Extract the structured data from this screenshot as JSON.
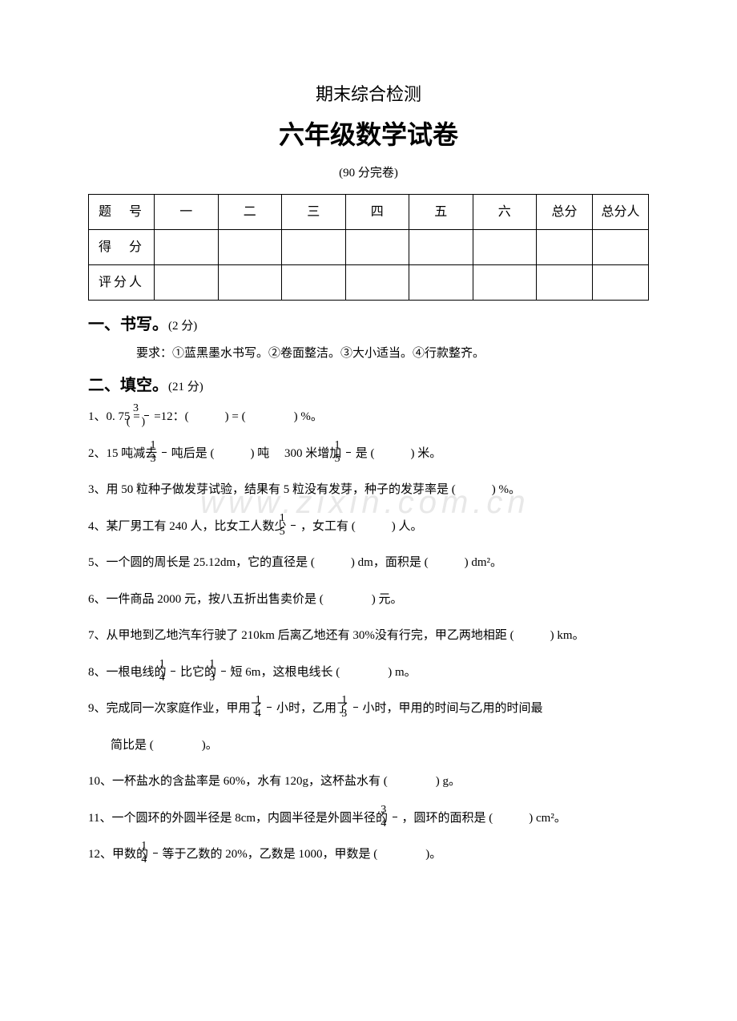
{
  "watermark": "www.zixin.com.cn",
  "header": {
    "subtitle": "期末综合检测",
    "title": "六年级数学试卷",
    "time": "(90 分完卷)"
  },
  "score_table": {
    "rows": [
      [
        "题　号",
        "一",
        "二",
        "三",
        "四",
        "五",
        "六",
        "总分",
        "总分人"
      ],
      [
        "得　分",
        "",
        "",
        "",
        "",
        "",
        "",
        "",
        ""
      ],
      [
        "评分人",
        "",
        "",
        "",
        "",
        "",
        "",
        "",
        ""
      ]
    ]
  },
  "sections": {
    "s1": {
      "title": "一、书写。",
      "points": "(2 分)",
      "requirement": "要求：①蓝黑墨水书写。②卷面整洁。③大小适当。④行款整齐。"
    },
    "s2": {
      "title": "二、填空。",
      "points": "(21 分)"
    }
  },
  "questions": {
    "q1_prefix": "1、0. 75 =",
    "q1_f1_num": "3",
    "q1_f1_den": "(　)",
    "q1_mid": " =12：(　　　) = (　　　　) %。",
    "q2_prefix": "2、15 吨减去",
    "q2_f1_num": "1",
    "q2_f1_den": "3",
    "q2_mid1": "吨后是 (　　　) 吨　 300 米增加",
    "q2_f2_num": "1",
    "q2_f2_den": "5",
    "q2_end": "是 (　　　) 米。",
    "q3": "3、用 50 粒种子做发芽试验，结果有 5 粒没有发芽，种子的发芽率是 (　　　) %。",
    "q4_prefix": "4、某厂男工有 240 人，比女工人数少",
    "q4_f1_num": "1",
    "q4_f1_den": "5",
    "q4_end": "，女工有 (　　　) 人。",
    "q5": "5、一个圆的周长是 25.12dm，它的直径是 (　　　) dm，面积是 (　　　) dm²。",
    "q6": "6、一件商品 2000 元，按八五折出售卖价是 (　　　　) 元。",
    "q7": "7、从甲地到乙地汽车行驶了 210km 后离乙地还有 30%没有行完，甲乙两地相距 (　　　) km。",
    "q8_prefix": "8、一根电线的",
    "q8_f1_num": "1",
    "q8_f1_den": "4",
    "q8_mid": "比它的",
    "q8_f2_num": "1",
    "q8_f2_den": "3",
    "q8_end": "短 6m，这根电线长 (　　　　) m。",
    "q9_prefix": "9、完成同一次家庭作业，甲用了",
    "q9_f1_num": "1",
    "q9_f1_den": "4",
    "q9_mid": "小时，乙用了",
    "q9_f2_num": "1",
    "q9_f2_den": "3",
    "q9_end": "小时，甲用的时间与乙用的时间最",
    "q9_line2": "简比是 (　　　　)。",
    "q10": "10、一杯盐水的含盐率是 60%，水有 120g，这杯盐水有 (　　　　) g。",
    "q11_prefix": "11、一个圆环的外圆半径是 8cm，内圆半径是外圆半径的",
    "q11_f1_num": "3",
    "q11_f1_den": "4",
    "q11_end": "，圆环的面积是 (　　　) cm²。",
    "q12_prefix": "12、甲数的",
    "q12_f1_num": "1",
    "q12_f1_den": "4",
    "q12_end": "等于乙数的 20%，乙数是 1000，甲数是 (　　　　)。"
  }
}
